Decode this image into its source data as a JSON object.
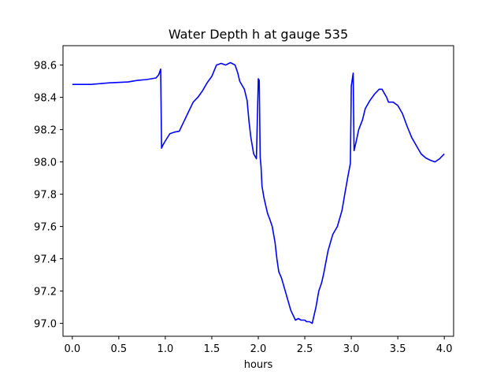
{
  "chart_data": {
    "type": "line",
    "title": "Water Depth h at gauge 535",
    "xlabel": "hours",
    "ylabel": "",
    "xlim": [
      -0.1,
      4.1
    ],
    "ylim": [
      96.92,
      98.72
    ],
    "xticks": [
      0.0,
      0.5,
      1.0,
      1.5,
      2.0,
      2.5,
      3.0,
      3.5,
      4.0
    ],
    "xtick_labels": [
      "0.0",
      "0.5",
      "1.0",
      "1.5",
      "2.0",
      "2.5",
      "3.0",
      "3.5",
      "4.0"
    ],
    "yticks": [
      97.0,
      97.2,
      97.4,
      97.6,
      97.8,
      98.0,
      98.2,
      98.4,
      98.6
    ],
    "ytick_labels": [
      "97.0",
      "97.2",
      "97.4",
      "97.6",
      "97.8",
      "98.0",
      "98.2",
      "98.4",
      "98.6"
    ],
    "grid": false,
    "series": [
      {
        "color": "#0000ff",
        "x": [
          0.0,
          0.2,
          0.4,
          0.6,
          0.7,
          0.8,
          0.9,
          0.93,
          0.95,
          0.96,
          0.97,
          1.0,
          1.05,
          1.1,
          1.15,
          1.2,
          1.25,
          1.3,
          1.35,
          1.4,
          1.45,
          1.5,
          1.55,
          1.6,
          1.65,
          1.7,
          1.75,
          1.78,
          1.8,
          1.85,
          1.88,
          1.9,
          1.92,
          1.95,
          1.98,
          2.0,
          2.01,
          2.02,
          2.03,
          2.04,
          2.06,
          2.08,
          2.1,
          2.12,
          2.15,
          2.18,
          2.2,
          2.22,
          2.25,
          2.3,
          2.35,
          2.4,
          2.43,
          2.46,
          2.5,
          2.52,
          2.55,
          2.58,
          2.62,
          2.65,
          2.68,
          2.7,
          2.75,
          2.8,
          2.85,
          2.9,
          2.93,
          2.96,
          2.99,
          3.0,
          3.02,
          3.03,
          3.05,
          3.08,
          3.1,
          3.12,
          3.15,
          3.2,
          3.25,
          3.3,
          3.33,
          3.38,
          3.4,
          3.45,
          3.5,
          3.55,
          3.6,
          3.65,
          3.7,
          3.75,
          3.8,
          3.85,
          3.9,
          3.95,
          4.0
        ],
        "y": [
          98.48,
          98.48,
          98.49,
          98.495,
          98.505,
          98.51,
          98.52,
          98.54,
          98.575,
          98.085,
          98.1,
          98.13,
          98.175,
          98.185,
          98.19,
          98.25,
          98.31,
          98.37,
          98.4,
          98.44,
          98.49,
          98.53,
          98.6,
          98.61,
          98.6,
          98.615,
          98.6,
          98.55,
          98.5,
          98.45,
          98.38,
          98.25,
          98.15,
          98.05,
          98.02,
          98.515,
          98.505,
          98.03,
          97.97,
          97.85,
          97.78,
          97.73,
          97.68,
          97.65,
          97.6,
          97.5,
          97.4,
          97.32,
          97.28,
          97.18,
          97.08,
          97.02,
          97.03,
          97.02,
          97.02,
          97.01,
          97.01,
          97.0,
          97.1,
          97.2,
          97.25,
          97.3,
          97.45,
          97.55,
          97.6,
          97.7,
          97.8,
          97.9,
          97.99,
          98.47,
          98.55,
          98.07,
          98.12,
          98.2,
          98.23,
          98.26,
          98.33,
          98.38,
          98.42,
          98.45,
          98.45,
          98.4,
          98.37,
          98.37,
          98.35,
          98.3,
          98.22,
          98.15,
          98.1,
          98.05,
          98.025,
          98.01,
          98.0,
          98.02,
          98.05
        ]
      }
    ]
  }
}
